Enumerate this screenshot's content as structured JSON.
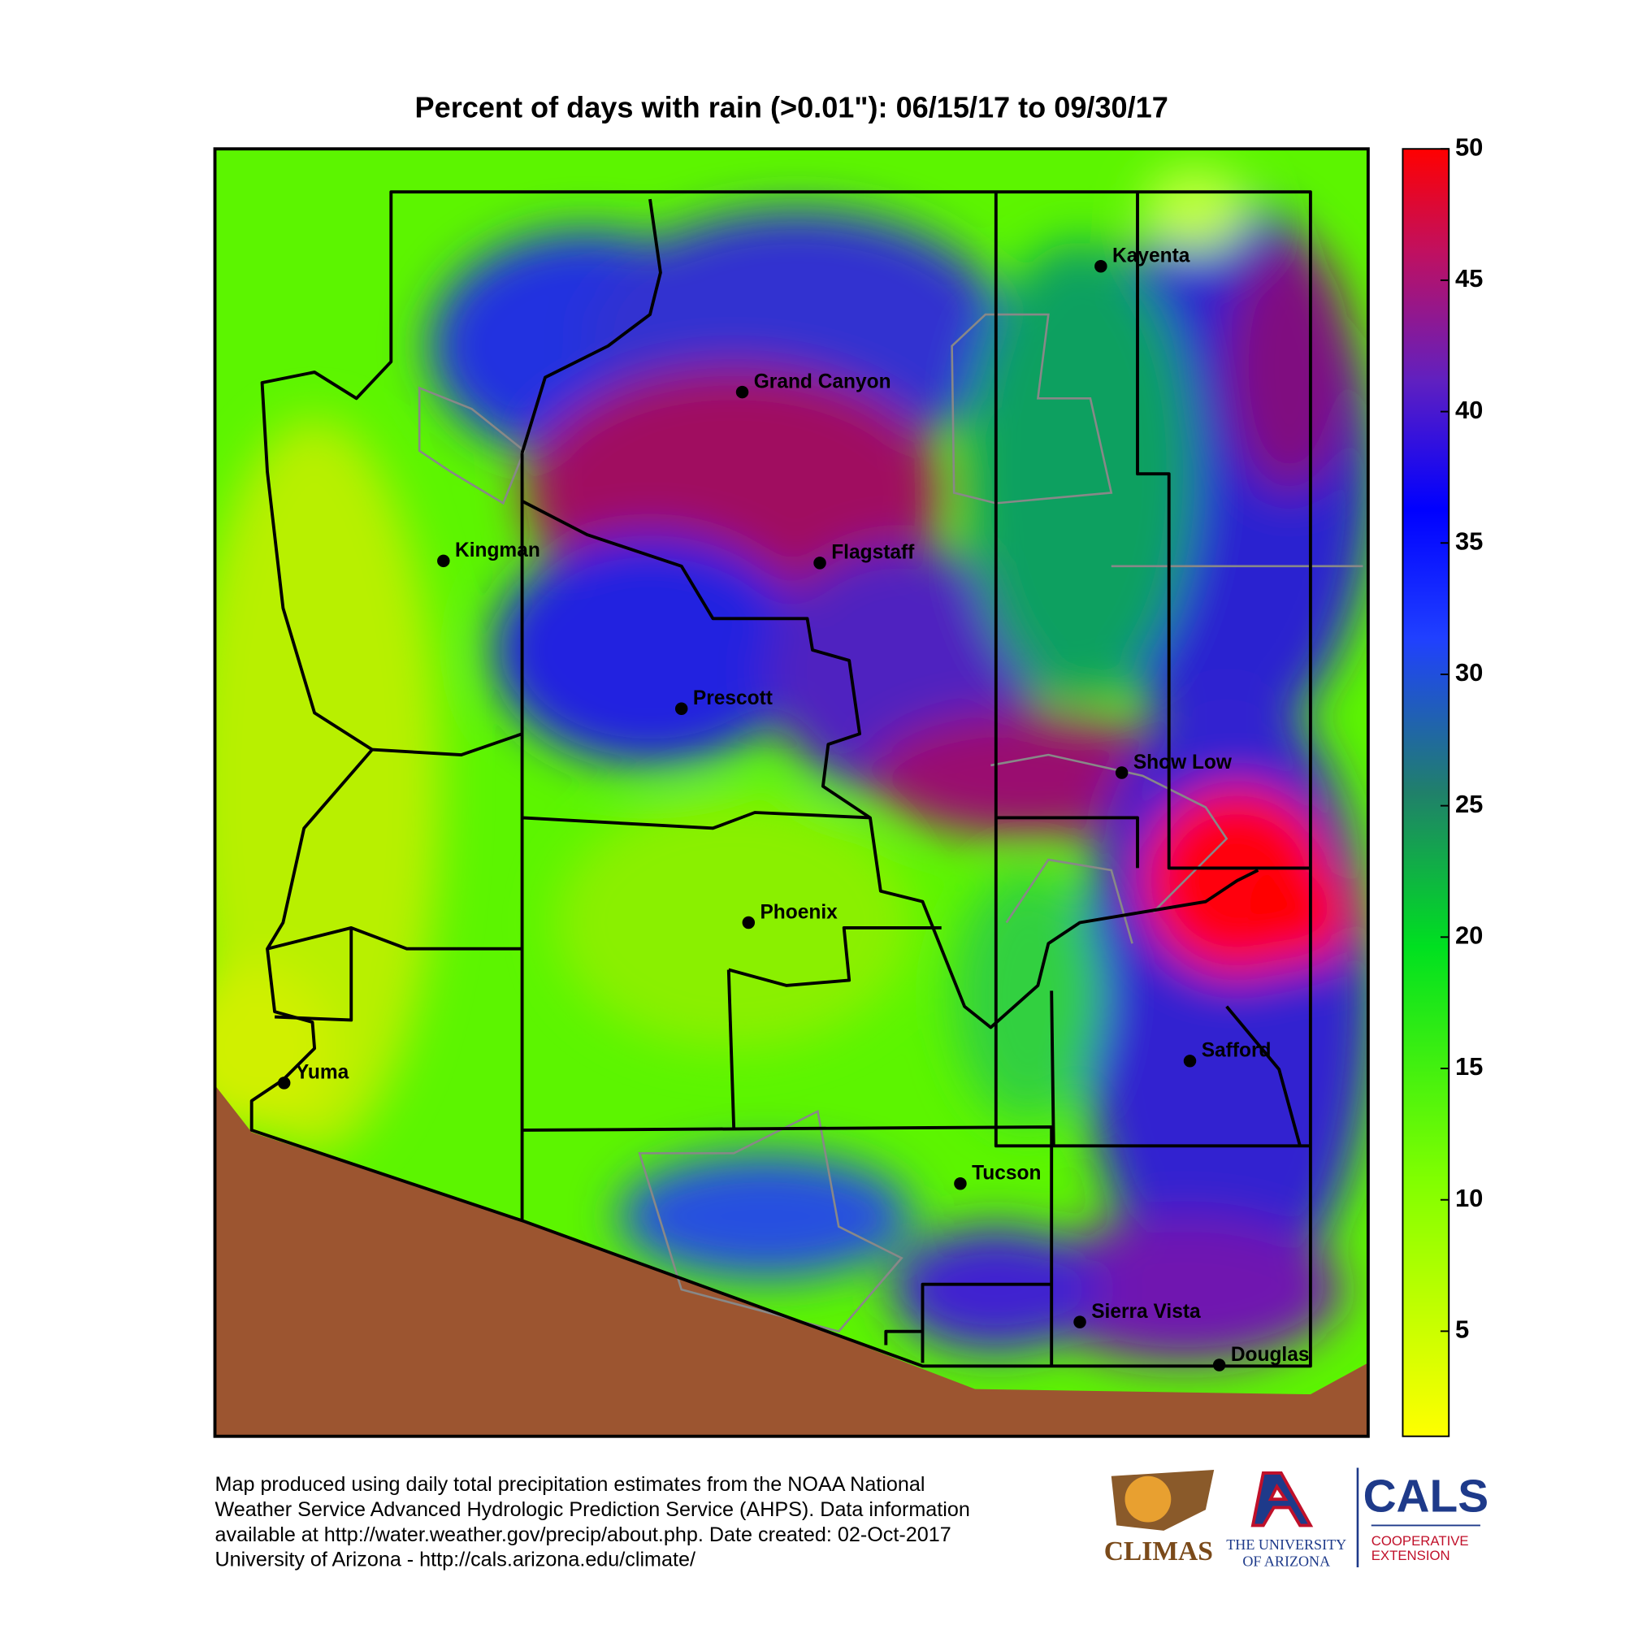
{
  "title": "Percent of days with rain (>0.01\"): 06/15/17 to 09/30/17",
  "colorbar": {
    "lim": [
      1,
      50
    ],
    "ticks": [
      5,
      10,
      15,
      20,
      25,
      30,
      35,
      40,
      45,
      50
    ]
  },
  "cities": [
    "Kayenta",
    "Grand Canyon",
    "Kingman",
    "Flagstaff",
    "Prescott",
    "Show Low",
    "Phoenix",
    "Safford",
    "Yuma",
    "Tucson",
    "Sierra Vista",
    "Douglas"
  ],
  "footer": [
    "Map produced using daily total precipitation estimates from the NOAA National",
    "Weather Service Advanced Hydrologic Prediction Service (AHPS). Data information",
    "available at http://water.weather.gov/precip/about.php. Date created: 02-Oct-2017",
    "University of Arizona - http://cals.arizona.edu/climate/"
  ],
  "logos": {
    "climas": "CLIMAS",
    "ua_line1": "THE UNIVERSITY",
    "ua_line2": "OF ARIZONA",
    "cals": "CALS",
    "cals_line1": "COOPERATIVE",
    "cals_line2": "EXTENSION"
  }
}
